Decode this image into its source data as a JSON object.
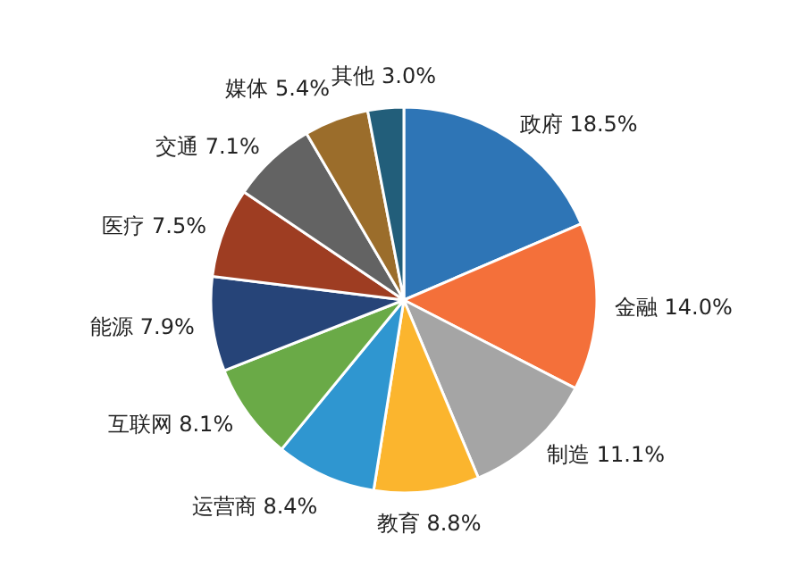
{
  "chart_data": {
    "type": "pie",
    "categories": [
      "政府",
      "金融",
      "制造",
      "教育",
      "运营商",
      "互联网",
      "能源",
      "医疗",
      "交通",
      "媒体",
      "其他"
    ],
    "values": [
      18.5,
      14.0,
      11.1,
      8.8,
      8.4,
      8.1,
      7.9,
      7.5,
      7.1,
      5.4,
      3.0
    ],
    "value_labels": [
      "18.5%",
      "14.0%",
      "11.1%",
      "8.8%",
      "8.4%",
      "8.1%",
      "7.9%",
      "7.5%",
      "7.1%",
      "5.4%",
      "3.0%"
    ],
    "colors": [
      "#2e75b6",
      "#f4703a",
      "#a5a5a5",
      "#fbb52e",
      "#2f96d0",
      "#6aaa47",
      "#264478",
      "#9e3d22",
      "#636363",
      "#9b6d2b",
      "#225e7a"
    ]
  }
}
